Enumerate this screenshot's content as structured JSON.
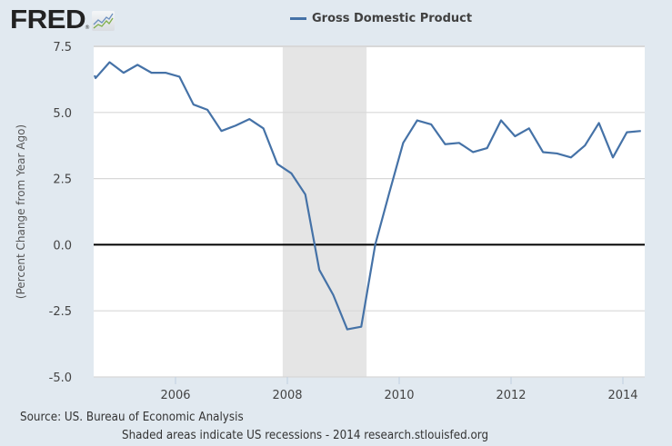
{
  "header": {
    "logo_text": "FRED",
    "logo_registered": "®",
    "logo_icon": "chart-line-icon"
  },
  "legend": {
    "series_label": "Gross Domestic Product",
    "series_color": "#4572a7"
  },
  "footer": {
    "source": "Source: US. Bureau of Economic Analysis",
    "note": "Shaded areas indicate US recessions - 2014 research.stlouisfed.org"
  },
  "colors": {
    "background": "#e1e9f0",
    "plot_background": "#ffffff",
    "gridline": "#d8d8d8",
    "recession_shade": "#e5e5e5",
    "zero_line": "#000000",
    "series": "#4572a7"
  },
  "chart_data": {
    "type": "line",
    "title": "",
    "xlabel": "",
    "ylabel": "(Percent Change from Year Ago)",
    "ylim": [
      -5.0,
      7.5
    ],
    "yticks": [
      "7.5",
      "5.0",
      "2.5",
      "0.0",
      "-2.5",
      "-5.0"
    ],
    "xticks": [
      "2006",
      "2008",
      "2010",
      "2012",
      "2014"
    ],
    "grid": true,
    "legend_position": "top-center",
    "recessions": [
      {
        "start": "2007-12",
        "end": "2009-06"
      }
    ],
    "series": [
      {
        "name": "Gross Domestic Product",
        "x": [
          "2004-Q3",
          "2004-Q4",
          "2005-Q1",
          "2005-Q2",
          "2005-Q3",
          "2005-Q4",
          "2006-Q1",
          "2006-Q2",
          "2006-Q3",
          "2006-Q4",
          "2007-Q1",
          "2007-Q2",
          "2007-Q3",
          "2007-Q4",
          "2008-Q1",
          "2008-Q2",
          "2008-Q3",
          "2008-Q4",
          "2009-Q1",
          "2009-Q2",
          "2009-Q3",
          "2009-Q4",
          "2010-Q1",
          "2010-Q2",
          "2010-Q3",
          "2010-Q4",
          "2011-Q1",
          "2011-Q2",
          "2011-Q3",
          "2011-Q4",
          "2012-Q1",
          "2012-Q2",
          "2012-Q3",
          "2012-Q4",
          "2013-Q1",
          "2013-Q2",
          "2013-Q3",
          "2013-Q4",
          "2014-Q1",
          "2014-Q2",
          "2014-Q3"
        ],
        "values": [
          6.4,
          6.3,
          6.9,
          6.5,
          6.8,
          6.5,
          6.5,
          6.35,
          5.3,
          5.1,
          4.3,
          4.5,
          4.75,
          4.4,
          3.05,
          2.7,
          1.9,
          -0.95,
          -1.9,
          -3.2,
          -3.1,
          0.0,
          1.95,
          3.85,
          4.7,
          4.55,
          3.8,
          3.85,
          3.5,
          3.65,
          4.7,
          4.1,
          4.4,
          3.5,
          3.45,
          3.3,
          3.75,
          4.6,
          3.3,
          4.25,
          4.3
        ]
      }
    ]
  }
}
